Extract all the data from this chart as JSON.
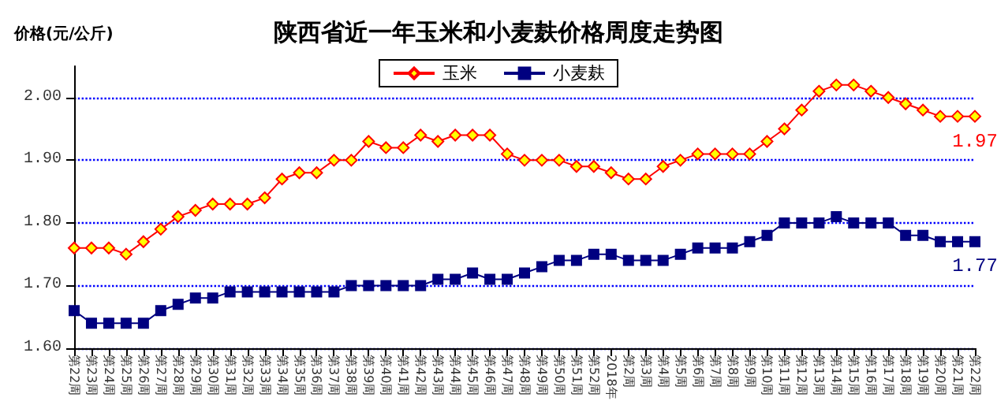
{
  "chart_data": {
    "type": "line",
    "title": "陕西省近一年玉米和小麦麸价格周度走势图",
    "ylabel": "价格(元/公斤)",
    "categories": [
      "第22周",
      "第23周",
      "第24周",
      "第25周",
      "第26周",
      "第27周",
      "第28周",
      "第29周",
      "第30周",
      "第31周",
      "第32周",
      "第33周",
      "第34周",
      "第35周",
      "第36周",
      "第37周",
      "第38周",
      "第39周",
      "第40周",
      "第41周",
      "第42周",
      "第43周",
      "第44周",
      "第45周",
      "第46周",
      "第47周",
      "第48周",
      "第49周",
      "第50周",
      "第51周",
      "第52周",
      "2018年",
      "第2周",
      "第3周",
      "第4周",
      "第5周",
      "第6周",
      "第7周",
      "第8周",
      "第9周",
      "第10周",
      "第11周",
      "第12周",
      "第13周",
      "第14周",
      "第15周",
      "第16周",
      "第17周",
      "第18周",
      "第19周",
      "第20周",
      "第21周",
      "第22周"
    ],
    "series": [
      {
        "name": "玉米",
        "color": "#ff0000",
        "marker": "diamond",
        "values": [
          1.76,
          1.76,
          1.76,
          1.75,
          1.77,
          1.79,
          1.81,
          1.82,
          1.83,
          1.83,
          1.83,
          1.84,
          1.87,
          1.88,
          1.88,
          1.9,
          1.9,
          1.93,
          1.92,
          1.92,
          1.94,
          1.93,
          1.94,
          1.94,
          1.94,
          1.91,
          1.9,
          1.9,
          1.9,
          1.89,
          1.89,
          1.88,
          1.87,
          1.87,
          1.89,
          1.9,
          1.91,
          1.91,
          1.91,
          1.91,
          1.93,
          1.95,
          1.98,
          2.01,
          2.02,
          2.02,
          2.01,
          2.0,
          1.99,
          1.98,
          1.97,
          1.97,
          1.97
        ],
        "value_labels": [
          null,
          null,
          null,
          null,
          null,
          null,
          null,
          null,
          null,
          null,
          null,
          null,
          null,
          null,
          null,
          null,
          null,
          null,
          null,
          null,
          null,
          null,
          null,
          null,
          null,
          null,
          null,
          null,
          null,
          null,
          null,
          null,
          null,
          null,
          null,
          null,
          null,
          null,
          null,
          null,
          null,
          null,
          null,
          null,
          null,
          null,
          null,
          null,
          null,
          null,
          null,
          null,
          "1.97"
        ]
      },
      {
        "name": "小麦麸",
        "color": "#000080",
        "marker": "square",
        "values": [
          1.66,
          1.64,
          1.64,
          1.64,
          1.64,
          1.66,
          1.67,
          1.68,
          1.68,
          1.69,
          1.69,
          1.69,
          1.69,
          1.69,
          1.69,
          1.69,
          1.7,
          1.7,
          1.7,
          1.7,
          1.7,
          1.71,
          1.71,
          1.72,
          1.71,
          1.71,
          1.72,
          1.73,
          1.74,
          1.74,
          1.75,
          1.75,
          1.74,
          1.74,
          1.74,
          1.75,
          1.76,
          1.76,
          1.76,
          1.77,
          1.78,
          1.8,
          1.8,
          1.8,
          1.81,
          1.8,
          1.8,
          1.8,
          1.78,
          1.78,
          1.77,
          1.77,
          1.77
        ],
        "value_labels": [
          null,
          null,
          null,
          null,
          null,
          null,
          null,
          null,
          null,
          null,
          null,
          null,
          null,
          null,
          null,
          null,
          null,
          null,
          null,
          null,
          null,
          null,
          null,
          null,
          null,
          null,
          null,
          null,
          null,
          null,
          null,
          null,
          null,
          null,
          null,
          null,
          null,
          null,
          null,
          null,
          null,
          null,
          null,
          null,
          null,
          null,
          null,
          null,
          null,
          null,
          null,
          null,
          "1.77"
        ]
      }
    ],
    "ylim": [
      1.6,
      2.05
    ],
    "yticks": [
      {
        "value": 1.6,
        "label": "1.60"
      },
      {
        "value": 1.7,
        "label": "1.70"
      },
      {
        "value": 1.8,
        "label": "1.80"
      },
      {
        "value": 1.9,
        "label": "1.90"
      },
      {
        "value": 2.0,
        "label": "2.00"
      }
    ],
    "grid": "y",
    "legend": "top",
    "line_style": "solid"
  }
}
